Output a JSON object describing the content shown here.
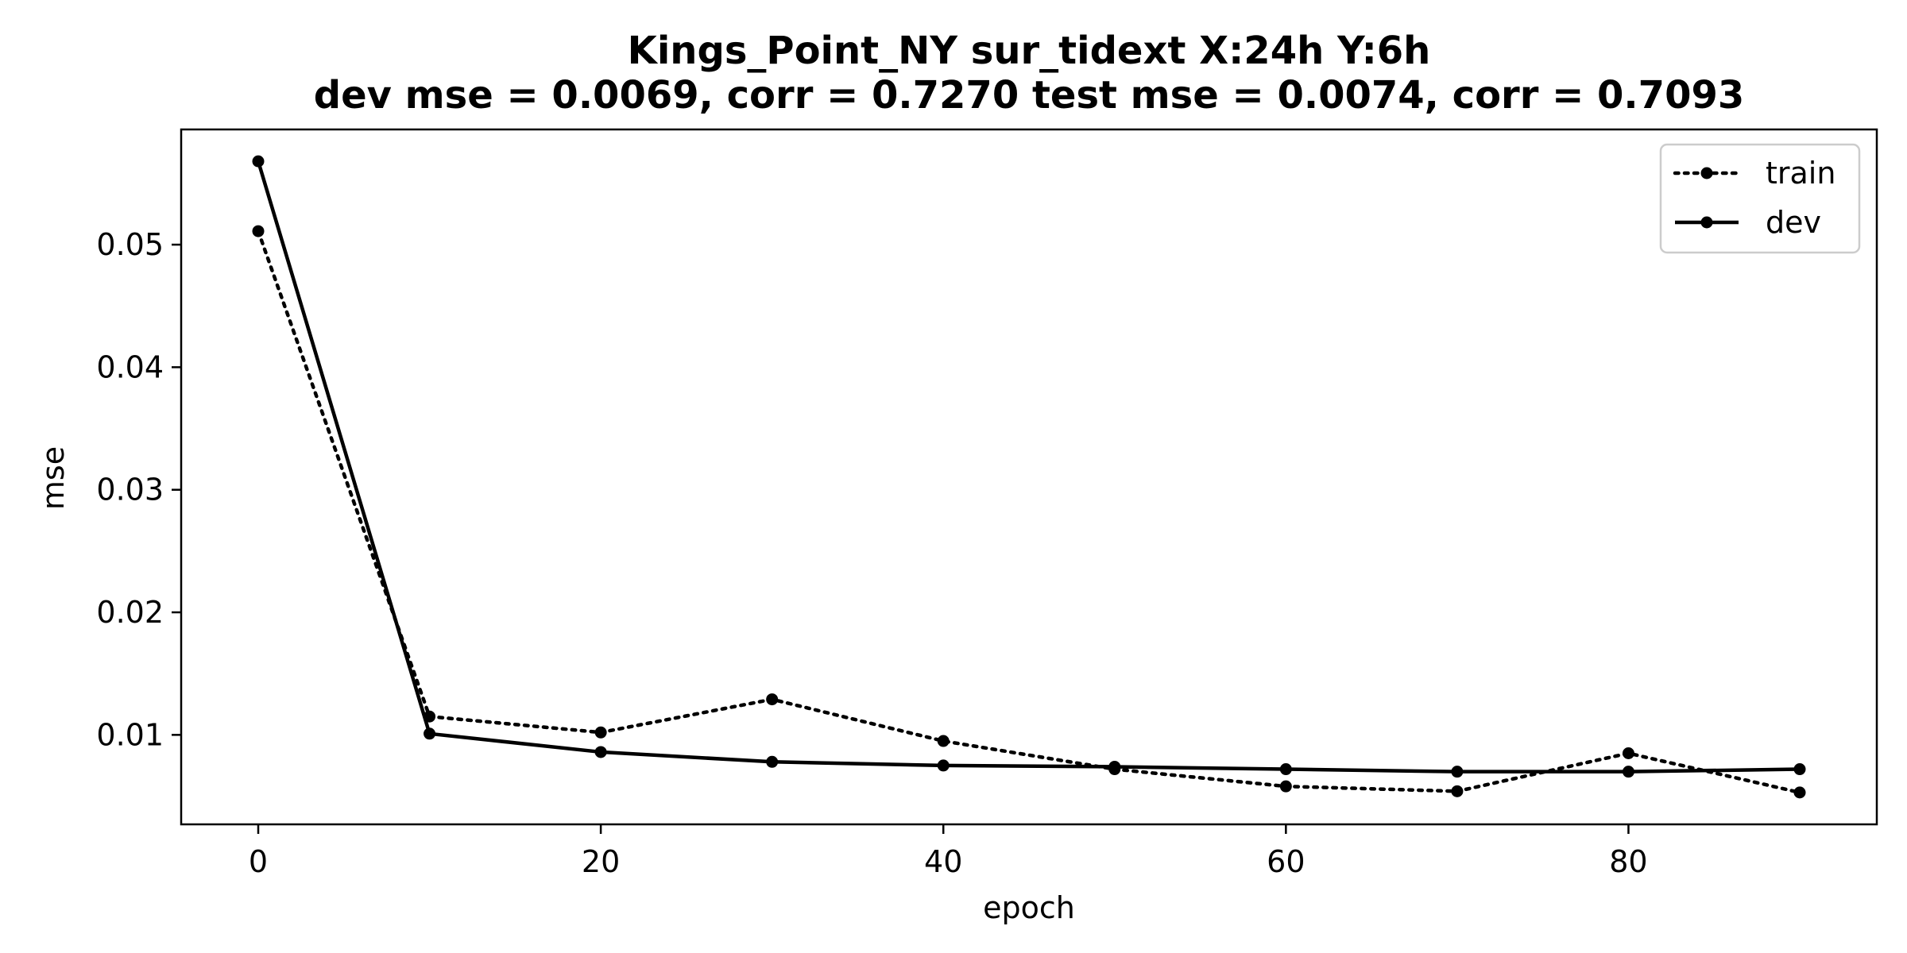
{
  "chart_data": {
    "type": "line",
    "title": "Kings_Point_NY   sur_tidext   X:24h   Y:6h",
    "subtitle": "dev mse = 0.0069, corr = 0.7270   test mse = 0.0074, corr = 0.7093",
    "xlabel": "epoch",
    "ylabel": "mse",
    "x": [
      0,
      10,
      20,
      30,
      40,
      50,
      60,
      70,
      80,
      90
    ],
    "xlim": [
      -4.5,
      94.5
    ],
    "ylim": [
      0.0027,
      0.0594
    ],
    "xticks": [
      0,
      20,
      40,
      60,
      80
    ],
    "yticks": [
      0.01,
      0.02,
      0.03,
      0.04,
      0.05
    ],
    "xtick_labels": [
      "0",
      "20",
      "40",
      "60",
      "80"
    ],
    "ytick_labels": [
      "0.01",
      "0.02",
      "0.03",
      "0.04",
      "0.05"
    ],
    "grid": false,
    "legend_position": "top-right",
    "series": [
      {
        "name": "train",
        "style": "dotted",
        "color": "#000000",
        "values": [
          0.0511,
          0.0115,
          0.0102,
          0.0129,
          0.0095,
          0.0072,
          0.0058,
          0.0054,
          0.0085,
          0.0053
        ]
      },
      {
        "name": "dev",
        "style": "solid",
        "color": "#000000",
        "values": [
          0.0568,
          0.0101,
          0.0086,
          0.0078,
          0.0075,
          0.0074,
          0.0072,
          0.007,
          0.007,
          0.0072
        ]
      }
    ]
  }
}
